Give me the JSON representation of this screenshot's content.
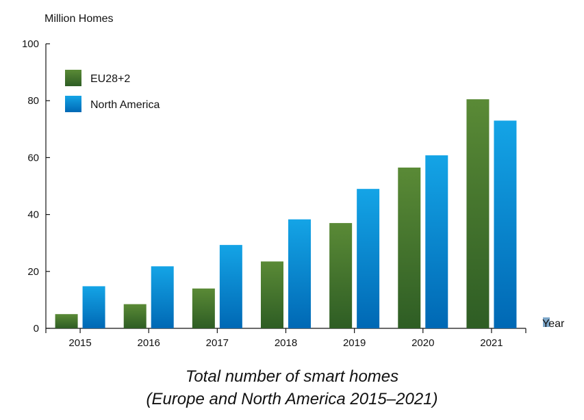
{
  "chart_data": {
    "type": "bar",
    "title": "Total number of smart homes",
    "subtitle": "(Europe and North America 2015–2021)",
    "ylabel": "Million Homes",
    "xlabel": "Year",
    "ylim": [
      0,
      100
    ],
    "yticks": [
      0,
      20,
      40,
      60,
      80,
      100
    ],
    "categories": [
      "2015",
      "2016",
      "2017",
      "2018",
      "2019",
      "2020",
      "2021"
    ],
    "series": [
      {
        "name": "EU28+2",
        "color_top": "#5a8a36",
        "color_bottom": "#2e5d24",
        "values": [
          5,
          8.5,
          14,
          23.5,
          37,
          56.5,
          80.5
        ]
      },
      {
        "name": "North America",
        "color_top": "#14a4e6",
        "color_bottom": "#0068b4",
        "values": [
          14.8,
          21.8,
          29.3,
          38.3,
          49,
          60.8,
          73
        ]
      }
    ],
    "legend_position": "top-left",
    "grid": false
  }
}
